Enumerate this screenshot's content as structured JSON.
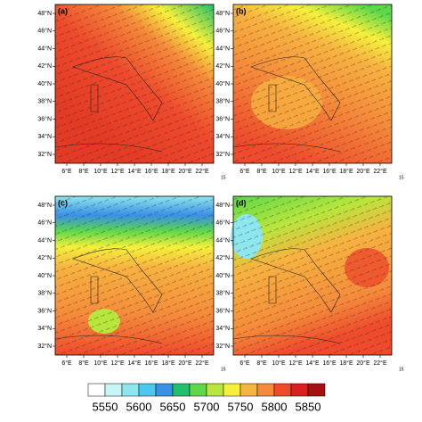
{
  "panels": [
    {
      "label": "(a)",
      "wind_ref": "15"
    },
    {
      "label": "(b)",
      "wind_ref": "15"
    },
    {
      "label": "(c)",
      "wind_ref": "15"
    },
    {
      "label": "(d)",
      "wind_ref": "15"
    }
  ],
  "lat_labels": [
    "48°N",
    "46°N",
    "44°N",
    "42°N",
    "40°N",
    "38°N",
    "36°N",
    "34°N",
    "32°N"
  ],
  "lon_labels": [
    "6°E",
    "8°E",
    "10°E",
    "12°E",
    "14°E",
    "16°E",
    "18°E",
    "20°E",
    "22°E"
  ],
  "colorbar": {
    "ticks": [
      5550,
      5600,
      5650,
      5700,
      5750,
      5800,
      5850
    ],
    "colors": [
      "#ffffff",
      "#c8f5f5",
      "#8ee6ee",
      "#4cc8f0",
      "#3a8fe6",
      "#22c06a",
      "#5ed84a",
      "#b8e63c",
      "#f5f03c",
      "#f7b340",
      "#f58a3a",
      "#ee4a2c",
      "#d8201c",
      "#a51010"
    ]
  }
}
